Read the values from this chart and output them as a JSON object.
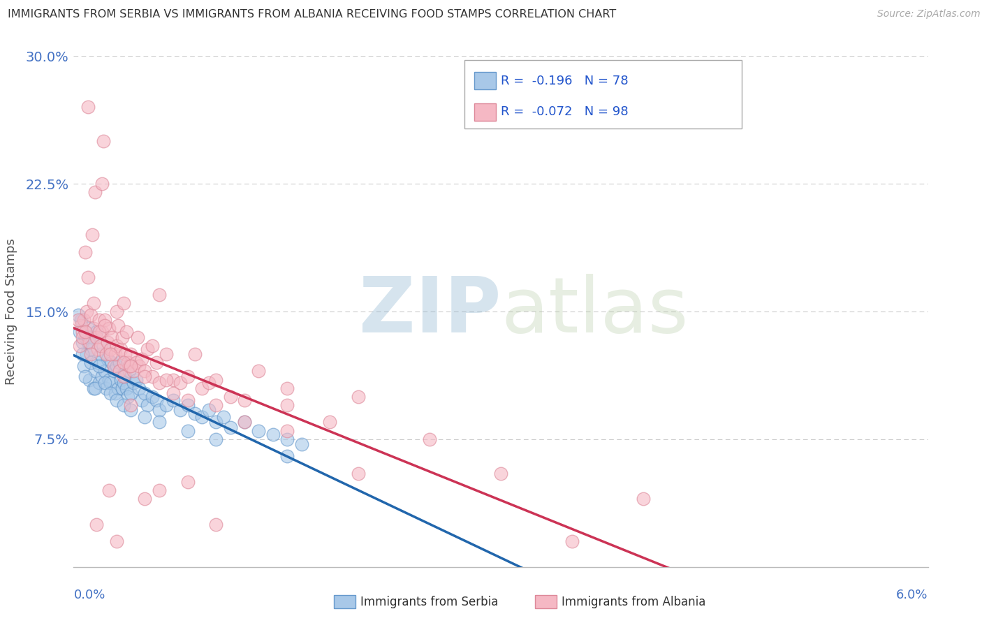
{
  "title": "IMMIGRANTS FROM SERBIA VS IMMIGRANTS FROM ALBANIA RECEIVING FOOD STAMPS CORRELATION CHART",
  "source": "Source: ZipAtlas.com",
  "ylabel": "Receiving Food Stamps",
  "xlim": [
    0.0,
    6.0
  ],
  "ylim": [
    0.0,
    30.0
  ],
  "yticks": [
    0.0,
    7.5,
    15.0,
    22.5,
    30.0
  ],
  "ytick_labels": [
    "",
    "7.5%",
    "15.0%",
    "22.5%",
    "30.0%"
  ],
  "xtick_left_label": "0.0%",
  "xtick_right_label": "6.0%",
  "serbia_label": "Immigrants from Serbia",
  "albania_label": "Immigrants from Albania",
  "serbia_color": "#a8c8e8",
  "serbia_edge_color": "#6699cc",
  "serbia_line_color": "#2166ac",
  "albania_color": "#f5b8c4",
  "albania_edge_color": "#dd8899",
  "albania_line_color": "#cc3355",
  "serbia_R": -0.196,
  "serbia_N": 78,
  "albania_R": -0.072,
  "albania_N": 98,
  "legend_R_color": "#cc2222",
  "legend_N_color": "#2255cc",
  "legend_text_color": "#2255cc",
  "axis_label_color": "#4472c4",
  "watermark": "ZIPatlas",
  "watermark_color": "#c8d8e8",
  "grid_color": "#cccccc",
  "title_color": "#333333",
  "source_color": "#aaaaaa",
  "serbia_x": [
    0.05,
    0.06,
    0.07,
    0.08,
    0.09,
    0.1,
    0.11,
    0.12,
    0.13,
    0.14,
    0.15,
    0.16,
    0.17,
    0.18,
    0.19,
    0.2,
    0.21,
    0.22,
    0.23,
    0.24,
    0.25,
    0.26,
    0.27,
    0.28,
    0.29,
    0.3,
    0.31,
    0.32,
    0.33,
    0.34,
    0.35,
    0.36,
    0.37,
    0.38,
    0.39,
    0.4,
    0.42,
    0.44,
    0.46,
    0.48,
    0.5,
    0.52,
    0.55,
    0.58,
    0.6,
    0.65,
    0.7,
    0.75,
    0.8,
    0.85,
    0.9,
    0.95,
    1.0,
    1.05,
    1.1,
    1.2,
    1.3,
    1.4,
    1.5,
    1.6,
    0.03,
    0.04,
    0.06,
    0.08,
    0.1,
    0.12,
    0.15,
    0.18,
    0.22,
    0.26,
    0.3,
    0.35,
    0.4,
    0.5,
    0.6,
    0.8,
    1.0,
    1.5
  ],
  "serbia_y": [
    14.5,
    13.2,
    11.8,
    13.5,
    12.5,
    14.0,
    11.0,
    12.8,
    13.5,
    10.5,
    11.5,
    13.8,
    12.0,
    10.8,
    12.5,
    11.2,
    13.0,
    11.5,
    10.5,
    12.2,
    11.0,
    10.8,
    12.0,
    11.5,
    10.2,
    11.8,
    10.5,
    12.0,
    11.0,
    10.5,
    10.8,
    11.2,
    10.5,
    10.0,
    11.5,
    10.2,
    10.8,
    11.0,
    10.5,
    9.8,
    10.2,
    9.5,
    10.0,
    9.8,
    9.2,
    9.5,
    9.8,
    9.2,
    9.5,
    9.0,
    8.8,
    9.2,
    8.5,
    8.8,
    8.2,
    8.5,
    8.0,
    7.8,
    7.5,
    7.2,
    14.8,
    13.8,
    12.5,
    11.2,
    13.2,
    12.0,
    10.5,
    11.8,
    10.8,
    10.2,
    9.8,
    9.5,
    9.2,
    8.8,
    8.5,
    8.0,
    7.5,
    6.5
  ],
  "albania_x": [
    0.04,
    0.05,
    0.06,
    0.07,
    0.08,
    0.09,
    0.1,
    0.11,
    0.12,
    0.13,
    0.14,
    0.15,
    0.16,
    0.17,
    0.18,
    0.19,
    0.2,
    0.21,
    0.22,
    0.23,
    0.24,
    0.25,
    0.26,
    0.27,
    0.28,
    0.29,
    0.3,
    0.31,
    0.32,
    0.33,
    0.34,
    0.35,
    0.36,
    0.37,
    0.38,
    0.39,
    0.4,
    0.42,
    0.44,
    0.46,
    0.48,
    0.5,
    0.52,
    0.55,
    0.58,
    0.6,
    0.65,
    0.7,
    0.75,
    0.8,
    0.85,
    0.9,
    0.95,
    1.0,
    1.1,
    1.2,
    1.3,
    1.5,
    1.8,
    2.0,
    2.5,
    3.0,
    4.0,
    0.03,
    0.06,
    0.1,
    0.14,
    0.18,
    0.22,
    0.26,
    0.3,
    0.35,
    0.4,
    0.5,
    0.6,
    0.7,
    0.8,
    1.0,
    1.2,
    1.5,
    0.08,
    0.12,
    0.16,
    0.2,
    0.25,
    0.3,
    0.35,
    0.4,
    0.5,
    0.6,
    0.8,
    1.0,
    1.5,
    2.0,
    3.5,
    0.45,
    0.55,
    0.65
  ],
  "albania_y": [
    13.0,
    14.2,
    13.8,
    14.5,
    18.5,
    15.0,
    17.0,
    13.2,
    14.8,
    19.5,
    14.0,
    22.0,
    13.5,
    12.8,
    14.5,
    13.0,
    13.8,
    25.0,
    14.5,
    12.5,
    13.2,
    14.0,
    12.8,
    13.5,
    11.8,
    12.5,
    13.0,
    14.2,
    11.5,
    12.8,
    13.5,
    11.2,
    12.5,
    13.8,
    12.0,
    11.8,
    12.5,
    11.5,
    12.0,
    11.8,
    12.2,
    11.5,
    12.8,
    11.2,
    12.0,
    16.0,
    12.5,
    11.0,
    10.8,
    11.2,
    12.5,
    10.5,
    10.8,
    11.0,
    10.0,
    9.8,
    11.5,
    10.5,
    8.5,
    10.0,
    7.5,
    5.5,
    4.0,
    14.5,
    13.5,
    27.0,
    15.5,
    13.8,
    14.2,
    12.5,
    15.0,
    12.0,
    11.8,
    11.2,
    10.8,
    10.2,
    9.8,
    9.5,
    8.5,
    8.0,
    13.8,
    12.5,
    2.5,
    22.5,
    4.5,
    1.5,
    15.5,
    9.5,
    4.0,
    4.5,
    5.0,
    2.5,
    9.5,
    5.5,
    1.5,
    13.5,
    13.0,
    11.0
  ]
}
